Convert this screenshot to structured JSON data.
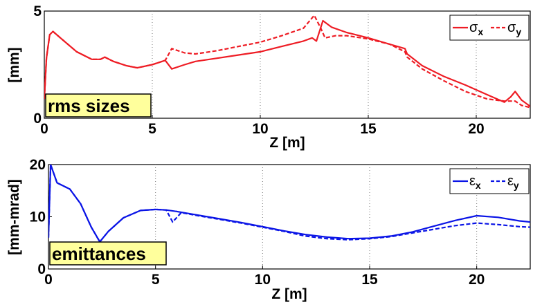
{
  "chart_data": [
    {
      "type": "line",
      "xlabel": "Z [m]",
      "ylabel": "[mm]",
      "annotation": "rms sizes",
      "xlim": [
        0,
        22.5
      ],
      "ylim": [
        0,
        5
      ],
      "xticks": [
        "0",
        "5",
        "10",
        "15",
        "20"
      ],
      "yticks": [
        "0",
        "5"
      ],
      "grid": "vertical dotted",
      "legend_position": "top-right",
      "legend": [
        {
          "symbol": "σ",
          "sub": "x",
          "style": "solid"
        },
        {
          "symbol": "σ",
          "sub": "y",
          "style": "dashed"
        }
      ],
      "color": "#ee1c24",
      "series": [
        {
          "label": "σx",
          "style": "solid",
          "points": [
            [
              0,
              0.9
            ],
            [
              0.1,
              2.8
            ],
            [
              0.25,
              3.9
            ],
            [
              0.4,
              4.05
            ],
            [
              0.8,
              3.7
            ],
            [
              1.5,
              3.1
            ],
            [
              2.2,
              2.75
            ],
            [
              2.6,
              2.75
            ],
            [
              2.8,
              2.85
            ],
            [
              3.2,
              2.65
            ],
            [
              3.8,
              2.45
            ],
            [
              4.3,
              2.35
            ],
            [
              5,
              2.5
            ],
            [
              5.6,
              2.7
            ],
            [
              5.9,
              2.3
            ],
            [
              6.5,
              2.5
            ],
            [
              7,
              2.65
            ],
            [
              8,
              2.8
            ],
            [
              9,
              2.95
            ],
            [
              10,
              3.1
            ],
            [
              11,
              3.35
            ],
            [
              12,
              3.6
            ],
            [
              12.4,
              3.75
            ],
            [
              12.6,
              3.6
            ],
            [
              12.9,
              4.55
            ],
            [
              13.3,
              4.25
            ],
            [
              14,
              4.0
            ],
            [
              15,
              3.75
            ],
            [
              16,
              3.45
            ],
            [
              16.7,
              3.25
            ],
            [
              16.8,
              3.0
            ],
            [
              17.5,
              2.45
            ],
            [
              18.5,
              1.95
            ],
            [
              19.5,
              1.55
            ],
            [
              20.5,
              1.1
            ],
            [
              21.3,
              0.75
            ],
            [
              21.6,
              1.0
            ],
            [
              21.8,
              1.25
            ],
            [
              22.1,
              0.85
            ],
            [
              22.5,
              0.55
            ]
          ]
        },
        {
          "label": "σy",
          "style": "dashed",
          "points": [
            [
              0,
              0.9
            ],
            [
              0.1,
              2.8
            ],
            [
              0.25,
              3.9
            ],
            [
              0.4,
              4.05
            ],
            [
              0.8,
              3.7
            ],
            [
              1.5,
              3.1
            ],
            [
              2.2,
              2.75
            ],
            [
              2.6,
              2.75
            ],
            [
              2.8,
              2.85
            ],
            [
              3.2,
              2.65
            ],
            [
              3.8,
              2.45
            ],
            [
              4.3,
              2.35
            ],
            [
              5,
              2.5
            ],
            [
              5.6,
              2.7
            ],
            [
              5.9,
              3.25
            ],
            [
              6.5,
              3.05
            ],
            [
              7,
              3.0
            ],
            [
              8,
              3.15
            ],
            [
              9,
              3.35
            ],
            [
              10,
              3.55
            ],
            [
              11,
              3.85
            ],
            [
              12,
              4.2
            ],
            [
              12.5,
              4.8
            ],
            [
              12.8,
              4.2
            ],
            [
              13,
              3.75
            ],
            [
              13.5,
              3.85
            ],
            [
              14,
              3.85
            ],
            [
              15,
              3.7
            ],
            [
              16,
              3.45
            ],
            [
              16.7,
              3.1
            ],
            [
              16.8,
              2.85
            ],
            [
              17.5,
              2.3
            ],
            [
              18.5,
              1.75
            ],
            [
              19.5,
              1.25
            ],
            [
              20.5,
              0.9
            ],
            [
              21.3,
              0.8
            ],
            [
              21.8,
              0.8
            ],
            [
              22.1,
              0.6
            ],
            [
              22.5,
              0.5
            ]
          ]
        }
      ]
    },
    {
      "type": "line",
      "xlabel": "Z [m]",
      "ylabel": "[mm-mrad]",
      "annotation": "emittances",
      "xlim": [
        0,
        22.5
      ],
      "ylim": [
        0,
        20
      ],
      "xticks": [
        "0",
        "5",
        "10",
        "15",
        "20"
      ],
      "yticks": [
        "0",
        "10",
        "20"
      ],
      "grid": "vertical dotted",
      "legend_position": "top-right",
      "legend": [
        {
          "symbol": "ε",
          "sub": "x",
          "style": "solid"
        },
        {
          "symbol": "ε",
          "sub": "y",
          "style": "dashed"
        }
      ],
      "color": "#0a14e6",
      "series": [
        {
          "label": "εx",
          "style": "solid",
          "points": [
            [
              0,
              6
            ],
            [
              0.1,
              20
            ],
            [
              0.4,
              16.5
            ],
            [
              1,
              15.3
            ],
            [
              1.5,
              12.5
            ],
            [
              2,
              8
            ],
            [
              2.4,
              5.2
            ],
            [
              2.8,
              7.2
            ],
            [
              3.5,
              9.8
            ],
            [
              4.3,
              11.2
            ],
            [
              5,
              11.4
            ],
            [
              5.5,
              11.3
            ],
            [
              6,
              11.0
            ],
            [
              7,
              10.3
            ],
            [
              8,
              9.6
            ],
            [
              9,
              8.9
            ],
            [
              10,
              8.1
            ],
            [
              11,
              7.3
            ],
            [
              12,
              6.6
            ],
            [
              13,
              6.1
            ],
            [
              14,
              5.8
            ],
            [
              15,
              5.9
            ],
            [
              16,
              6.3
            ],
            [
              17,
              7.1
            ],
            [
              18,
              8.2
            ],
            [
              19,
              9.3
            ],
            [
              20,
              10.2
            ],
            [
              21,
              9.9
            ],
            [
              22,
              9.2
            ],
            [
              22.5,
              9.0
            ]
          ]
        },
        {
          "label": "εy",
          "style": "dashed",
          "points": [
            [
              0,
              6
            ],
            [
              0.1,
              20
            ],
            [
              0.4,
              16.5
            ],
            [
              1,
              15.3
            ],
            [
              1.5,
              12.5
            ],
            [
              2,
              8
            ],
            [
              2.4,
              5.2
            ],
            [
              2.8,
              7.2
            ],
            [
              3.5,
              9.8
            ],
            [
              4.3,
              11.2
            ],
            [
              5,
              11.4
            ],
            [
              5.5,
              11.3
            ],
            [
              5.8,
              9.0
            ],
            [
              6.2,
              10.8
            ],
            [
              7,
              10.2
            ],
            [
              8,
              9.5
            ],
            [
              9,
              8.8
            ],
            [
              10,
              8.0
            ],
            [
              11,
              7.2
            ],
            [
              12,
              6.3
            ],
            [
              13,
              5.8
            ],
            [
              14,
              5.6
            ],
            [
              15,
              5.8
            ],
            [
              16,
              6.2
            ],
            [
              17,
              6.9
            ],
            [
              18,
              7.6
            ],
            [
              19,
              8.3
            ],
            [
              20,
              8.8
            ],
            [
              21,
              8.5
            ],
            [
              22,
              8.1
            ],
            [
              22.5,
              8.0
            ]
          ]
        }
      ]
    }
  ]
}
